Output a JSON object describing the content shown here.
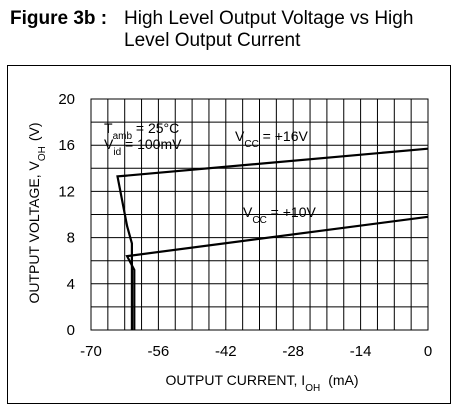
{
  "figure_label": "Figure 3b :",
  "title_line1": "High Level Output Voltage vs High",
  "title_line2": "Level Output Current",
  "chart_data": {
    "type": "line",
    "title": "High Level Output Voltage vs High Level Output Current",
    "xlabel": {
      "main": "OUTPUT CURRENT, I",
      "sub": "OH",
      "unit": "(mA)"
    },
    "ylabel": {
      "main": "OUTPUT VOLTAGE, V",
      "sub": "OH",
      "unit": "(V)"
    },
    "xlim": [
      -70,
      0
    ],
    "ylim": [
      0,
      20
    ],
    "x_ticks": [
      -70,
      -56,
      -42,
      -28,
      -14,
      0
    ],
    "y_ticks": [
      0,
      4,
      8,
      12,
      16,
      20
    ],
    "grid": true,
    "conditions": [
      {
        "main": "T",
        "sub": "amb",
        "rest": " = 25°C"
      },
      {
        "main": "V",
        "sub": "id",
        "rest": " = 100mV"
      }
    ],
    "series": [
      {
        "label_main": "V",
        "label_sub": "CC",
        "label_rest": " = +16V",
        "color": "#000000",
        "x": [
          0,
          -64.5,
          -62.5,
          -61.5,
          -61.5
        ],
        "y": [
          15.7,
          13.3,
          9.0,
          7.5,
          0
        ]
      },
      {
        "label_main": "V",
        "label_sub": "CC",
        "label_rest": " = +10V",
        "color": "#000000",
        "x": [
          0,
          -62.5,
          -61.0,
          -61.0
        ],
        "y": [
          9.8,
          6.4,
          5.2,
          0
        ]
      }
    ]
  }
}
